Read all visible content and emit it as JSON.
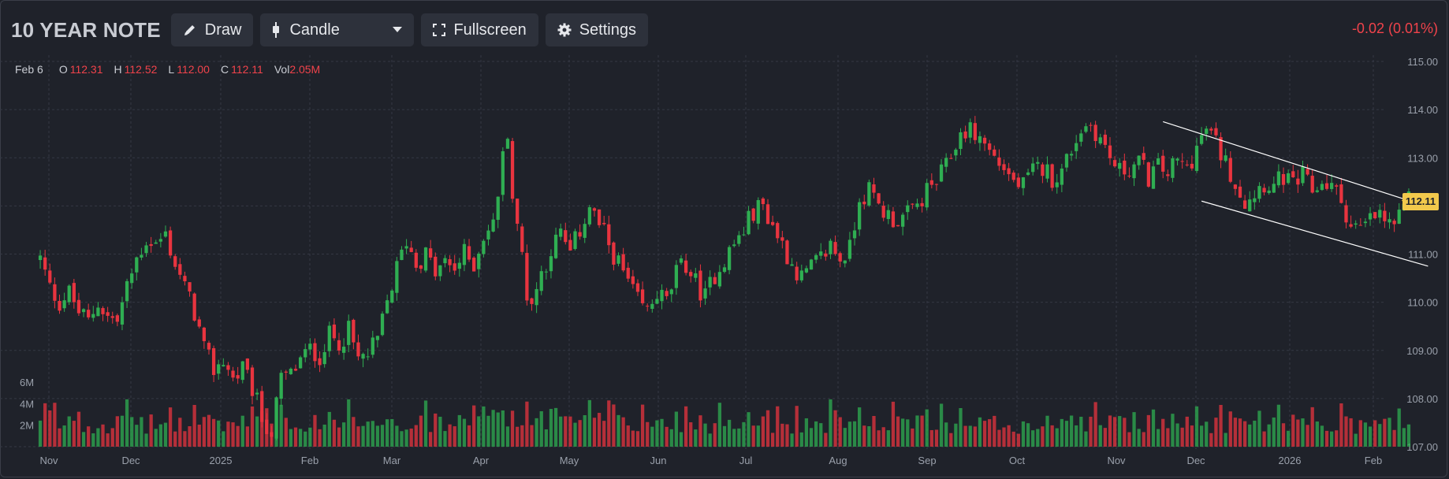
{
  "header": {
    "title": "10 YEAR NOTE",
    "draw_label": "Draw",
    "chart_type_label": "Candle",
    "fullscreen_label": "Fullscreen",
    "settings_label": "Settings",
    "change_text": "-0.02 (0.01%)"
  },
  "ohlc": {
    "date": "Feb 6",
    "o_label": "O",
    "o": "112.31",
    "h_label": "H",
    "h": "112.52",
    "l_label": "L",
    "l": "112.00",
    "c_label": "C",
    "c": "112.11",
    "vol_label": "Vol",
    "vol": "2.05M"
  },
  "colors": {
    "background": "#1f222a",
    "up": "#2fae52",
    "down": "#e8343f",
    "grid": "#343844",
    "axis_text": "#9aa0ab",
    "last_price_badge": "#f2c94c"
  },
  "chart_data": {
    "type": "candlestick",
    "title": "",
    "xlabel": "",
    "ylabel": "",
    "ylim": [
      107.0,
      115.0
    ],
    "y_ticks": [
      "107.00",
      "108.00",
      "109.00",
      "110.00",
      "111.00",
      "112.00",
      "113.00",
      "114.00",
      "115.00"
    ],
    "x_ticks": [
      "Nov",
      "Dec",
      "2025",
      "Feb",
      "Mar",
      "Apr",
      "May",
      "Jun",
      "Jul",
      "Aug",
      "Sep",
      "Oct",
      "Nov",
      "Dec",
      "2026",
      "Feb"
    ],
    "volume_ticks": [
      "6M",
      "4M",
      "2M"
    ],
    "volume_max": 6000000,
    "last_price": "112.11",
    "grid": true,
    "price_path": [
      [
        0,
        110.9
      ],
      [
        2,
        110.3
      ],
      [
        4,
        110.0
      ],
      [
        6,
        110.2
      ],
      [
        8,
        109.8
      ],
      [
        10,
        109.6
      ],
      [
        12,
        110.0
      ],
      [
        14,
        109.7
      ],
      [
        16,
        109.6
      ],
      [
        18,
        110.3
      ],
      [
        20,
        110.9
      ],
      [
        22,
        111.3
      ],
      [
        24,
        111.2
      ],
      [
        26,
        111.4
      ],
      [
        28,
        110.8
      ],
      [
        30,
        110.3
      ],
      [
        32,
        109.8
      ],
      [
        34,
        109.0
      ],
      [
        36,
        108.6
      ],
      [
        38,
        108.8
      ],
      [
        40,
        108.4
      ],
      [
        42,
        108.6
      ],
      [
        44,
        108.2
      ],
      [
        46,
        107.6
      ],
      [
        48,
        107.3
      ],
      [
        50,
        108.4
      ],
      [
        52,
        108.5
      ],
      [
        54,
        108.8
      ],
      [
        56,
        109.0
      ],
      [
        58,
        108.9
      ],
      [
        60,
        109.3
      ],
      [
        62,
        109.2
      ],
      [
        64,
        109.4
      ],
      [
        66,
        108.8
      ],
      [
        68,
        108.9
      ],
      [
        70,
        109.2
      ],
      [
        72,
        110.0
      ],
      [
        74,
        110.7
      ],
      [
        76,
        111.3
      ],
      [
        78,
        110.8
      ],
      [
        80,
        111.0
      ],
      [
        82,
        110.6
      ],
      [
        84,
        110.8
      ],
      [
        86,
        110.7
      ],
      [
        88,
        111.0
      ],
      [
        90,
        110.8
      ],
      [
        92,
        111.4
      ],
      [
        94,
        111.6
      ],
      [
        96,
        113.0
      ],
      [
        97,
        113.6
      ],
      [
        98,
        112.2
      ],
      [
        99,
        111.5
      ],
      [
        100,
        111.0
      ],
      [
        101,
        110.2
      ],
      [
        102,
        110.0
      ],
      [
        104,
        110.6
      ],
      [
        106,
        111.1
      ],
      [
        108,
        111.4
      ],
      [
        110,
        111.0
      ],
      [
        112,
        111.5
      ],
      [
        114,
        112.0
      ],
      [
        116,
        111.6
      ],
      [
        118,
        111.2
      ],
      [
        120,
        110.8
      ],
      [
        122,
        110.4
      ],
      [
        124,
        110.0
      ],
      [
        126,
        109.8
      ],
      [
        128,
        110.2
      ],
      [
        130,
        110.0
      ],
      [
        132,
        110.6
      ],
      [
        134,
        110.8
      ],
      [
        136,
        110.4
      ],
      [
        138,
        110.1
      ],
      [
        140,
        110.6
      ],
      [
        142,
        110.9
      ],
      [
        144,
        111.2
      ],
      [
        146,
        111.5
      ],
      [
        148,
        111.9
      ],
      [
        150,
        112.0
      ],
      [
        152,
        111.6
      ],
      [
        154,
        111.2
      ],
      [
        156,
        110.8
      ],
      [
        158,
        110.5
      ],
      [
        160,
        110.7
      ],
      [
        162,
        110.9
      ],
      [
        164,
        111.2
      ],
      [
        166,
        110.9
      ],
      [
        168,
        111.1
      ],
      [
        170,
        112.2
      ],
      [
        172,
        112.3
      ],
      [
        174,
        112.0
      ],
      [
        176,
        111.8
      ],
      [
        178,
        111.7
      ],
      [
        180,
        111.8
      ],
      [
        182,
        112.0
      ],
      [
        184,
        112.3
      ],
      [
        186,
        112.5
      ],
      [
        188,
        112.8
      ],
      [
        190,
        113.3
      ],
      [
        192,
        113.6
      ],
      [
        194,
        113.5
      ],
      [
        196,
        113.3
      ],
      [
        198,
        113.0
      ],
      [
        200,
        112.8
      ],
      [
        202,
        112.5
      ],
      [
        204,
        112.4
      ],
      [
        206,
        112.7
      ],
      [
        208,
        112.8
      ],
      [
        210,
        112.6
      ],
      [
        212,
        112.7
      ],
      [
        214,
        113.2
      ],
      [
        216,
        113.6
      ],
      [
        218,
        113.7
      ],
      [
        220,
        113.4
      ],
      [
        222,
        113.0
      ],
      [
        224,
        112.7
      ],
      [
        226,
        112.8
      ],
      [
        228,
        112.9
      ],
      [
        230,
        112.6
      ],
      [
        232,
        112.8
      ],
      [
        234,
        112.7
      ],
      [
        236,
        112.9
      ],
      [
        238,
        112.8
      ],
      [
        240,
        113.2
      ],
      [
        242,
        113.6
      ],
      [
        244,
        113.3
      ],
      [
        246,
        112.9
      ],
      [
        248,
        112.5
      ],
      [
        250,
        112.1
      ],
      [
        252,
        112.3
      ],
      [
        254,
        112.5
      ],
      [
        256,
        112.4
      ],
      [
        258,
        112.6
      ],
      [
        260,
        112.4
      ],
      [
        262,
        112.6
      ],
      [
        264,
        112.3
      ],
      [
        266,
        112.5
      ],
      [
        268,
        112.4
      ],
      [
        270,
        112.1
      ],
      [
        272,
        111.6
      ],
      [
        274,
        111.5
      ],
      [
        276,
        111.7
      ],
      [
        278,
        111.8
      ],
      [
        280,
        111.6
      ],
      [
        282,
        111.7
      ],
      [
        284,
        112.1
      ]
    ],
    "trendlines": [
      {
        "from": [
          233,
          113.75
        ],
        "to": [
          289,
          111.95
        ]
      },
      {
        "from": [
          241,
          112.1
        ],
        "to": [
          288,
          110.75
        ]
      }
    ]
  }
}
